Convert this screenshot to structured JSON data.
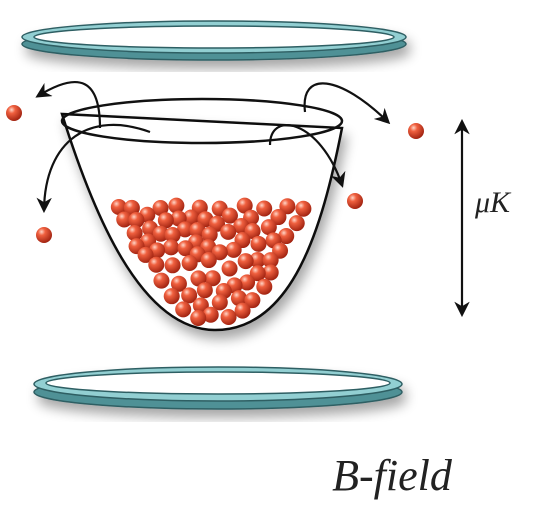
{
  "labels": {
    "energy": "μK",
    "field": "B-field"
  }
}
